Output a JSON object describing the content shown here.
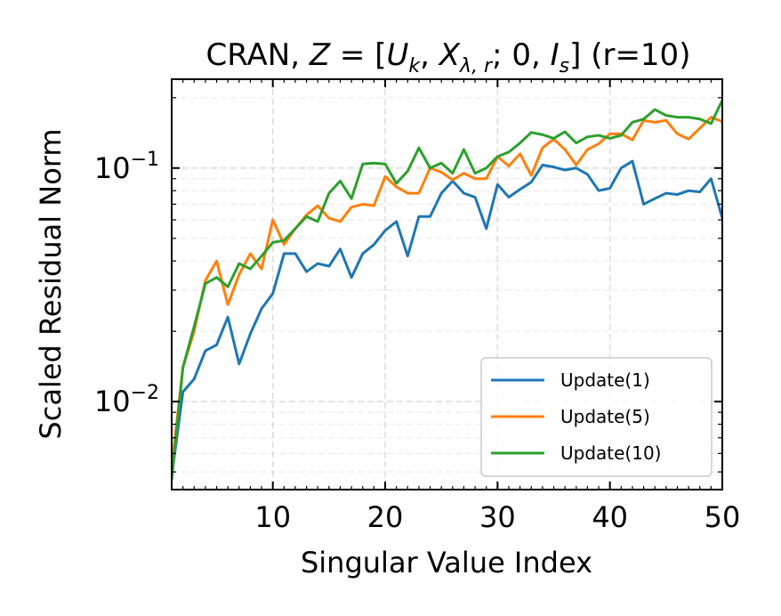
{
  "chart_data": {
    "type": "line",
    "title_parts": {
      "prefix": "CRAN, ",
      "z": "Z",
      "eq": " = [",
      "u": "U",
      "u_sub": "k",
      "comma1": ", ",
      "x": "X",
      "x_sub": "λ, r",
      "mid": "; 0, ",
      "i": "I",
      "i_sub": "s",
      "suffix": "] (r=10)"
    },
    "xlabel": "Singular Value Index",
    "ylabel": "Scaled Residual Norm",
    "xlim": [
      1,
      50
    ],
    "ylim": [
      0.0042,
      0.24
    ],
    "yscale": "log",
    "grid": true,
    "legend_position": "lower-right",
    "x_ticks": [
      10,
      20,
      30,
      40,
      50
    ],
    "y_ticks": [
      {
        "value": 0.01,
        "base": "10",
        "exp": "−2"
      },
      {
        "value": 0.1,
        "base": "10",
        "exp": "−1"
      }
    ],
    "x": [
      1,
      2,
      3,
      4,
      5,
      6,
      7,
      8,
      9,
      10,
      11,
      12,
      13,
      14,
      15,
      16,
      17,
      18,
      19,
      20,
      21,
      22,
      23,
      24,
      25,
      26,
      27,
      28,
      29,
      30,
      31,
      32,
      33,
      34,
      35,
      36,
      37,
      38,
      39,
      40,
      41,
      42,
      43,
      44,
      45,
      46,
      47,
      48,
      49,
      50
    ],
    "series": [
      {
        "name": "Update(1)",
        "color": "#1f77b4",
        "values": [
          0.0048,
          0.011,
          0.0125,
          0.0165,
          0.0175,
          0.023,
          0.0145,
          0.0195,
          0.025,
          0.029,
          0.043,
          0.043,
          0.036,
          0.039,
          0.038,
          0.045,
          0.034,
          0.043,
          0.047,
          0.054,
          0.059,
          0.042,
          0.062,
          0.062,
          0.078,
          0.088,
          0.078,
          0.075,
          0.055,
          0.085,
          0.075,
          0.081,
          0.087,
          0.103,
          0.101,
          0.098,
          0.1,
          0.094,
          0.08,
          0.082,
          0.1,
          0.107,
          0.07,
          0.074,
          0.078,
          0.077,
          0.08,
          0.079,
          0.09,
          0.061
        ]
      },
      {
        "name": "Update(5)",
        "color": "#ff7f0e",
        "values": [
          0.0052,
          0.014,
          0.02,
          0.033,
          0.04,
          0.026,
          0.035,
          0.043,
          0.037,
          0.06,
          0.047,
          0.055,
          0.063,
          0.069,
          0.061,
          0.059,
          0.068,
          0.07,
          0.069,
          0.092,
          0.083,
          0.078,
          0.078,
          0.1,
          0.096,
          0.089,
          0.095,
          0.09,
          0.09,
          0.112,
          0.102,
          0.115,
          0.093,
          0.122,
          0.133,
          0.12,
          0.103,
          0.12,
          0.127,
          0.14,
          0.14,
          0.132,
          0.16,
          0.157,
          0.16,
          0.14,
          0.133,
          0.148,
          0.165,
          0.158
        ]
      },
      {
        "name": "Update(10)",
        "color": "#2ca02c",
        "values": [
          0.0046,
          0.014,
          0.021,
          0.032,
          0.034,
          0.031,
          0.039,
          0.037,
          0.042,
          0.048,
          0.049,
          0.055,
          0.062,
          0.059,
          0.078,
          0.088,
          0.074,
          0.104,
          0.105,
          0.104,
          0.086,
          0.097,
          0.122,
          0.1,
          0.105,
          0.095,
          0.12,
          0.095,
          0.1,
          0.112,
          0.117,
          0.128,
          0.142,
          0.139,
          0.134,
          0.143,
          0.128,
          0.136,
          0.138,
          0.134,
          0.138,
          0.157,
          0.162,
          0.178,
          0.168,
          0.165,
          0.165,
          0.162,
          0.155,
          0.195
        ]
      }
    ]
  }
}
